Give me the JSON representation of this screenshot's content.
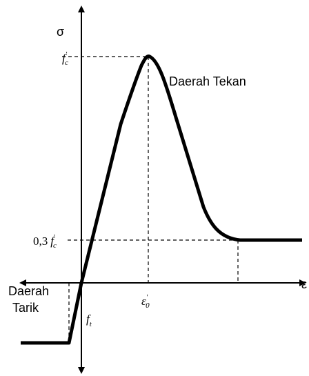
{
  "axes": {
    "y_label": "σ",
    "x_label": "ε"
  },
  "peak": {
    "symbol": "f",
    "sub": "c",
    "prime": "'"
  },
  "low": {
    "factor": "0,3",
    "symbol": "f",
    "sub": "c",
    "prime": "'"
  },
  "tension": {
    "symbol": "f",
    "sub": "t"
  },
  "strain": {
    "symbol": "ε",
    "sub": "0",
    "prime": "'"
  },
  "regions": {
    "compression": "Daerah Tekan",
    "tension_1": "Daerah",
    "tension_2": "Tarik"
  }
}
